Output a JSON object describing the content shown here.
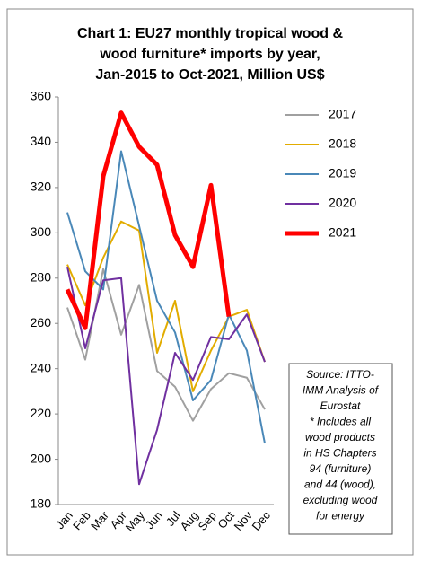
{
  "chart_data": {
    "type": "line",
    "title": [
      "Chart 1: EU27 monthly tropical wood &",
      "wood furniture* imports by year,",
      "Jan-2015 to Oct-2021, Million US$"
    ],
    "categories": [
      "Jan",
      "Feb",
      "Mar",
      "Apr",
      "May",
      "Jun",
      "Jul",
      "Aug",
      "Sep",
      "Oct",
      "Nov",
      "Dec"
    ],
    "series": [
      {
        "name": "2017",
        "color": "#a0a0a0",
        "width": 2,
        "values": [
          267,
          244,
          284,
          255,
          277,
          239,
          232,
          217,
          231,
          238,
          236,
          222
        ]
      },
      {
        "name": "2018",
        "color": "#e2ac00",
        "width": 2,
        "values": [
          286,
          268,
          289,
          305,
          301,
          247,
          270,
          230,
          248,
          263,
          266,
          243
        ]
      },
      {
        "name": "2019",
        "color": "#4a88b8",
        "width": 2,
        "values": [
          309,
          283,
          275,
          336,
          303,
          270,
          256,
          226,
          235,
          264,
          248,
          207
        ]
      },
      {
        "name": "2020",
        "color": "#7030a0",
        "width": 2,
        "values": [
          285,
          249,
          279,
          280,
          189,
          213,
          247,
          235,
          254,
          253,
          264,
          243
        ]
      },
      {
        "name": "2021",
        "color": "#ff0000",
        "width": 5,
        "values": [
          275,
          258,
          325,
          353,
          338,
          330,
          299,
          285,
          321,
          263,
          null,
          null
        ]
      }
    ],
    "ylim": [
      180,
      360
    ],
    "yticks": [
      180,
      200,
      220,
      240,
      260,
      280,
      300,
      320,
      340,
      360
    ],
    "annotation": [
      "Source: ITTO-",
      "IMM Analysis of",
      "Eurostat",
      "* Includes all",
      "wood products",
      "in HS Chapters",
      "94 (furniture)",
      "and 44 (wood),",
      "excluding wood",
      "for energy"
    ]
  }
}
